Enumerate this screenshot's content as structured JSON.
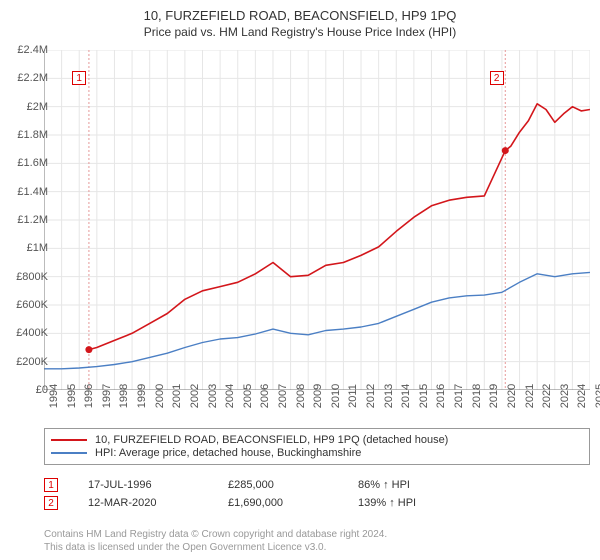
{
  "title": "10, FURZEFIELD ROAD, BEACONSFIELD, HP9 1PQ",
  "subtitle": "Price paid vs. HM Land Registry's House Price Index (HPI)",
  "chart": {
    "type": "line",
    "background_color": "#ffffff",
    "grid_color": "#e6e6e6",
    "axis_color": "#777777",
    "xlim": [
      1994,
      2025
    ],
    "ylim": [
      0,
      2400000
    ],
    "ytick_step": 200000,
    "y_labels": [
      "£0",
      "£200K",
      "£400K",
      "£600K",
      "£800K",
      "£1M",
      "£1.2M",
      "£1.4M",
      "£1.6M",
      "£1.8M",
      "£2M",
      "£2.2M",
      "£2.4M"
    ],
    "x_labels": [
      "1994",
      "1995",
      "1996",
      "1997",
      "1998",
      "1999",
      "2000",
      "2001",
      "2002",
      "2003",
      "2004",
      "2005",
      "2006",
      "2007",
      "2008",
      "2009",
      "2010",
      "2011",
      "2012",
      "2013",
      "2014",
      "2015",
      "2016",
      "2017",
      "2018",
      "2019",
      "2020",
      "2021",
      "2022",
      "2023",
      "2024",
      "2025"
    ],
    "series": [
      {
        "name": "property",
        "label": "10, FURZEFIELD ROAD, BEACONSFIELD, HP9 1PQ (detached house)",
        "color": "#d3161b",
        "line_width": 1.6,
        "points": [
          [
            1996.55,
            285000
          ],
          [
            1997,
            300000
          ],
          [
            1998,
            350000
          ],
          [
            1999,
            400000
          ],
          [
            2000,
            470000
          ],
          [
            2001,
            540000
          ],
          [
            2002,
            640000
          ],
          [
            2003,
            700000
          ],
          [
            2004,
            730000
          ],
          [
            2005,
            760000
          ],
          [
            2006,
            820000
          ],
          [
            2007,
            900000
          ],
          [
            2008,
            800000
          ],
          [
            2009,
            810000
          ],
          [
            2010,
            880000
          ],
          [
            2011,
            900000
          ],
          [
            2012,
            950000
          ],
          [
            2013,
            1010000
          ],
          [
            2014,
            1120000
          ],
          [
            2015,
            1220000
          ],
          [
            2016,
            1300000
          ],
          [
            2017,
            1340000
          ],
          [
            2018,
            1360000
          ],
          [
            2019,
            1370000
          ],
          [
            2020.19,
            1690000
          ],
          [
            2020.5,
            1720000
          ],
          [
            2021,
            1820000
          ],
          [
            2021.5,
            1900000
          ],
          [
            2022,
            2020000
          ],
          [
            2022.5,
            1980000
          ],
          [
            2023,
            1890000
          ],
          [
            2023.5,
            1950000
          ],
          [
            2024,
            2000000
          ],
          [
            2024.5,
            1970000
          ],
          [
            2025,
            1980000
          ]
        ]
      },
      {
        "name": "hpi",
        "label": "HPI: Average price, detached house, Buckinghamshire",
        "color": "#4b7fc4",
        "line_width": 1.4,
        "points": [
          [
            1994,
            150000
          ],
          [
            1995,
            150000
          ],
          [
            1996,
            155000
          ],
          [
            1997,
            165000
          ],
          [
            1998,
            180000
          ],
          [
            1999,
            200000
          ],
          [
            2000,
            230000
          ],
          [
            2001,
            260000
          ],
          [
            2002,
            300000
          ],
          [
            2003,
            335000
          ],
          [
            2004,
            360000
          ],
          [
            2005,
            370000
          ],
          [
            2006,
            395000
          ],
          [
            2007,
            430000
          ],
          [
            2008,
            400000
          ],
          [
            2009,
            390000
          ],
          [
            2010,
            420000
          ],
          [
            2011,
            430000
          ],
          [
            2012,
            445000
          ],
          [
            2013,
            470000
          ],
          [
            2014,
            520000
          ],
          [
            2015,
            570000
          ],
          [
            2016,
            620000
          ],
          [
            2017,
            650000
          ],
          [
            2018,
            665000
          ],
          [
            2019,
            670000
          ],
          [
            2020,
            690000
          ],
          [
            2021,
            760000
          ],
          [
            2022,
            820000
          ],
          [
            2023,
            800000
          ],
          [
            2024,
            820000
          ],
          [
            2025,
            830000
          ]
        ]
      }
    ],
    "sale_markers": [
      {
        "n": "1",
        "x": 1996.55,
        "y": 285000,
        "box_x": 1995.6,
        "box_y": 2250000
      },
      {
        "n": "2",
        "x": 2020.19,
        "y": 1690000,
        "box_x": 2019.3,
        "box_y": 2250000
      }
    ],
    "marker_line_color": "#e69999",
    "sale_dot_color": "#d3161b",
    "sale_dot_radius": 3.5
  },
  "legend": {
    "border_color": "#999999",
    "items": [
      "property",
      "hpi"
    ]
  },
  "sales": [
    {
      "n": "1",
      "date": "17-JUL-1996",
      "price": "£285,000",
      "hpi": "86% ↑ HPI"
    },
    {
      "n": "2",
      "date": "12-MAR-2020",
      "price": "£1,690,000",
      "hpi": "139% ↑ HPI"
    }
  ],
  "footnote_line1": "Contains HM Land Registry data © Crown copyright and database right 2024.",
  "footnote_line2": "This data is licensed under the Open Government Licence v3.0.",
  "font_size_title": 13,
  "font_size_subtitle": 12,
  "font_size_axis": 11,
  "font_size_legend": 11,
  "font_size_footnote": 10
}
